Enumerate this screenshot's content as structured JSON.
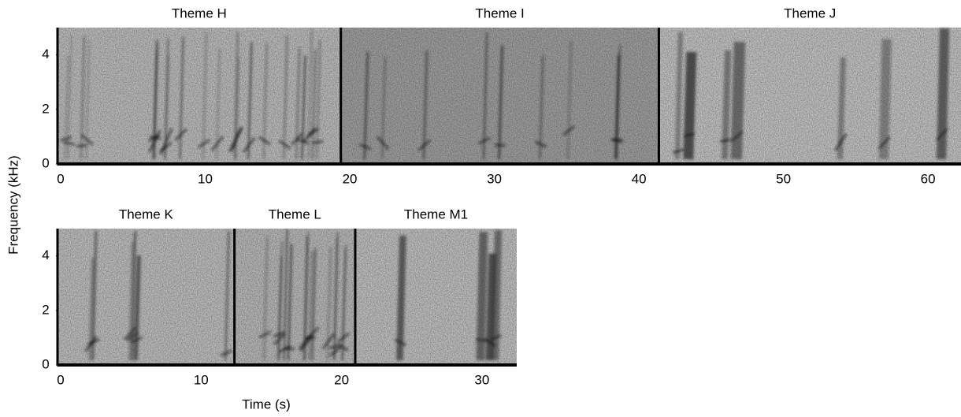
{
  "chart_data": [
    {
      "type": "spectrogram",
      "y_label": "Frequency (kHz)",
      "xlim": [
        0,
        62.5
      ],
      "xticks": [
        0,
        10,
        20,
        30,
        40,
        50,
        60
      ],
      "ylim": [
        0,
        5
      ],
      "yticks": [
        0,
        2,
        4
      ],
      "themes": [
        {
          "name": "Theme H",
          "start": 0,
          "end": 19.6,
          "color": "#c4c4c4"
        },
        {
          "name": "Theme I",
          "start": 19.6,
          "end": 41.6,
          "color": "#a6a6a6"
        },
        {
          "name": "Theme J",
          "start": 41.6,
          "end": 62.5,
          "color": "#cbcbcb"
        }
      ]
    },
    {
      "type": "spectrogram",
      "x_label": "Time (s)",
      "xlim": [
        0,
        32.7
      ],
      "xticks": [
        0,
        10,
        20,
        30
      ],
      "ylim": [
        0,
        5
      ],
      "yticks": [
        0,
        2,
        4
      ],
      "themes": [
        {
          "name": "Theme K",
          "start": 0,
          "end": 12.6,
          "color": "#c6c6c6"
        },
        {
          "name": "Theme L",
          "start": 12.6,
          "end": 21.2,
          "color": "#c0c0c0"
        },
        {
          "name": "Theme M1",
          "start": 21.2,
          "end": 32.7,
          "color": "#c8c8c8"
        }
      ]
    }
  ]
}
